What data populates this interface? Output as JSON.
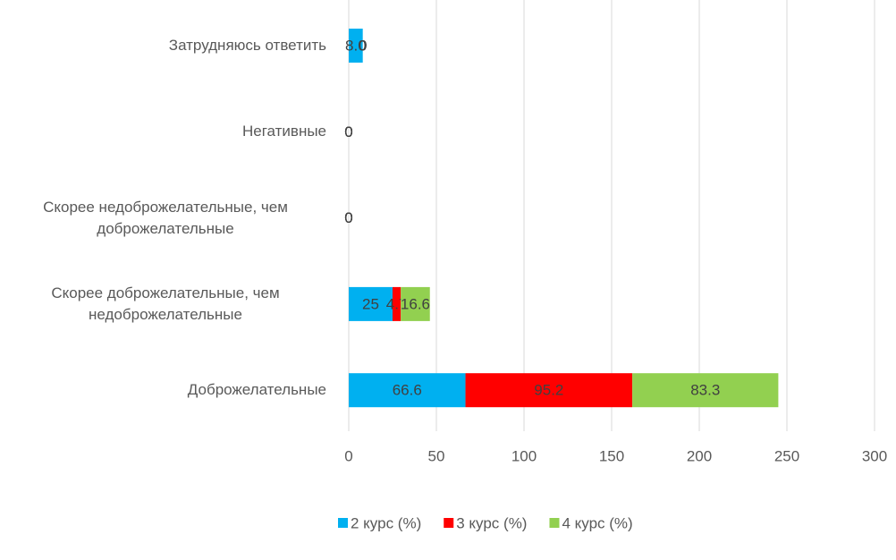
{
  "chart_data": {
    "type": "stacked_bar_horizontal",
    "categories": [
      "Затрудняюсь ответить",
      "Негативные",
      "Скорее недоброжелательные, чем доброжелательные",
      "Скорее доброжелательные, чем недоброжелательные",
      "Доброжелательные"
    ],
    "series": [
      {
        "name": "2 курс (%)",
        "color": "#00b0f0",
        "values": [
          8.0,
          0,
          0,
          25,
          66.6
        ],
        "value_labels": [
          "8.0",
          "0",
          "0",
          "25",
          "66.6"
        ]
      },
      {
        "name": "3 курс (%)",
        "color": "#ff0000",
        "values": [
          0,
          0,
          0,
          4.7,
          95.2
        ]
      },
      {
        "name": "4 курс (%)",
        "color": "#92d050",
        "values": [
          0,
          0,
          0,
          16.6,
          83.3
        ]
      }
    ],
    "xlim": [
      0,
      300
    ],
    "xticks": [
      0,
      50,
      100,
      150,
      200,
      250,
      300
    ],
    "grid": true,
    "legend": "bottom"
  }
}
